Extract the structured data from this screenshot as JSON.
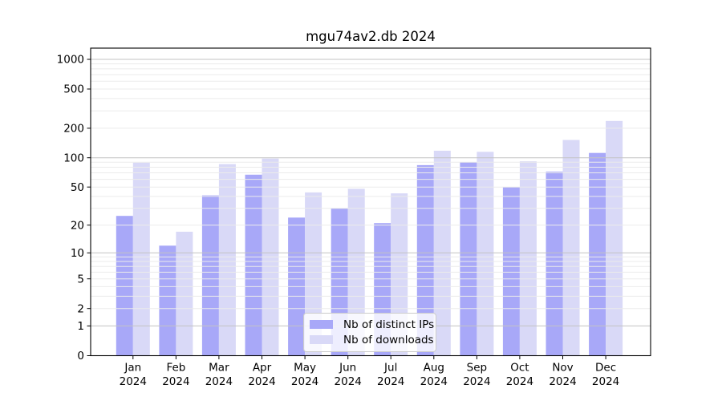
{
  "title": "mgu74av2.db 2024",
  "legend": {
    "items": [
      {
        "label": "Nb of distinct IPs",
        "color": "#a8a8f8"
      },
      {
        "label": "Nb of downloads",
        "color": "#d9d9f7"
      }
    ]
  },
  "chart_data": {
    "type": "bar",
    "title": "mgu74av2.db 2024",
    "categories": [
      "Jan 2024",
      "Feb 2024",
      "Mar 2024",
      "Apr 2024",
      "May 2024",
      "Jun 2024",
      "Jul 2024",
      "Aug 2024",
      "Sep 2024",
      "Oct 2024",
      "Nov 2024",
      "Dec 2024"
    ],
    "series": [
      {
        "name": "Nb of distinct IPs",
        "color": "#a8a8f8",
        "values": [
          25,
          12,
          41,
          67,
          24,
          30,
          21,
          84,
          90,
          50,
          72,
          112
        ]
      },
      {
        "name": "Nb of downloads",
        "color": "#d9d9f7",
        "values": [
          89,
          17,
          86,
          98,
          44,
          48,
          43,
          118,
          115,
          92,
          152,
          237
        ]
      }
    ],
    "xlabel": "",
    "ylabel": "",
    "yscale": "log(value+1)",
    "yticks": [
      0,
      1,
      2,
      5,
      10,
      20,
      50,
      100,
      200,
      500,
      1000
    ],
    "ylim": [
      0,
      1320
    ],
    "grid": "horizontal major+minor, drawn over bars",
    "legend_position": "lower center",
    "major_grid_color": "#c3c3c3",
    "minor_grid_color": "#ebebeb"
  }
}
